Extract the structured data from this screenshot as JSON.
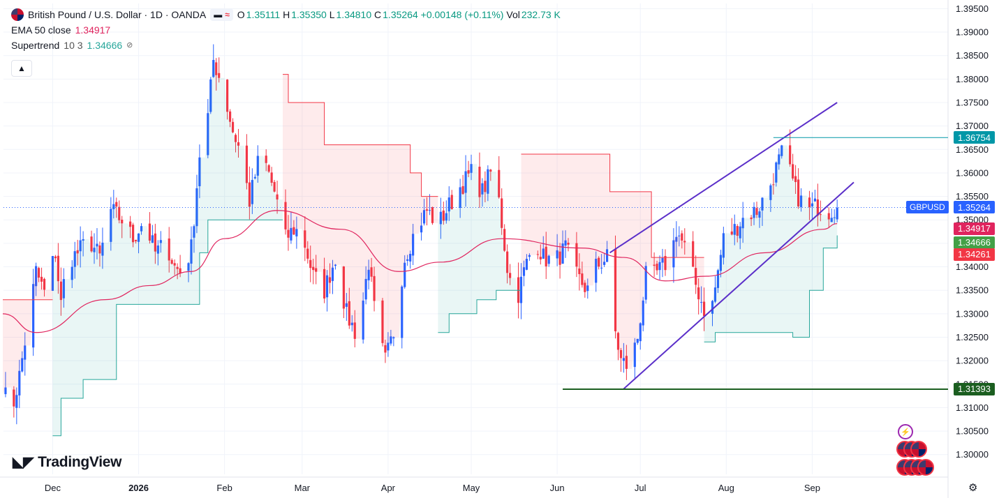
{
  "header": {
    "symbol_title": "British Pound / U.S. Dollar · 1D · OANDA",
    "o_label": "O",
    "o_value": "1.35111",
    "h_label": "H",
    "h_value": "1.35350",
    "l_label": "L",
    "l_value": "1.34810",
    "c_label": "C",
    "c_value": "1.35264",
    "change": "+0.00148 (+0.11%)",
    "vol_label": "Vol",
    "vol_value": "232.73 K"
  },
  "indicators": {
    "ema": {
      "name": "EMA 50 close",
      "value": "1.34917"
    },
    "supertrend": {
      "name": "Supertrend",
      "params": "10 3",
      "value": "1.34666"
    }
  },
  "price_tags": {
    "resistance": "1.36754",
    "symbol": "GBPUSD",
    "last": "1.35264",
    "ema": "1.34917",
    "supertrend": "1.34666",
    "ema_prev": "1.34261",
    "support": "1.31393"
  },
  "logo_text": "TradingView",
  "colors": {
    "up": "#2962ff",
    "down": "#f23645",
    "ema": "#e0245e",
    "supertrend_up": "#26a69a",
    "supertrend_down": "#f23645",
    "channel": "#5b2fc9",
    "support_line": "#1b5e20",
    "resistance_line": "#0097a7"
  },
  "chart_data": {
    "type": "candlestick",
    "y_ticks": [
      "1.39500",
      "1.39000",
      "1.38500",
      "1.38000",
      "1.37500",
      "1.37000",
      "1.36500",
      "1.36000",
      "1.35500",
      "1.35000",
      "1.34500",
      "1.34000",
      "1.33500",
      "1.33000",
      "1.32500",
      "1.32000",
      "1.31500",
      "1.31000",
      "1.30500",
      "1.30000"
    ],
    "ylim": [
      1.2958,
      1.3961
    ],
    "x_ticks": [
      {
        "label": "Dec",
        "date": "2025-12-01"
      },
      {
        "label": "2026",
        "date": "2026-01-01"
      },
      {
        "label": "Feb",
        "date": "2026-02-01"
      },
      {
        "label": "Mar",
        "date": "2026-03-01"
      },
      {
        "label": "Apr",
        "date": "2026-04-01"
      },
      {
        "label": "May",
        "date": "2026-05-01"
      },
      {
        "label": "Jun",
        "date": "2026-06-01"
      },
      {
        "label": "Jul",
        "date": "2026-07-01"
      },
      {
        "label": "Aug",
        "date": "2026-08-01"
      },
      {
        "label": "Sep",
        "date": "2026-09-01"
      }
    ],
    "anchors": [
      [
        "2025-11-13",
        1.315
      ],
      [
        "2025-11-15",
        1.3098
      ],
      [
        "2025-11-17",
        1.3112
      ],
      [
        "2025-11-19",
        1.3168
      ],
      [
        "2025-11-22",
        1.3276
      ],
      [
        "2025-11-25",
        1.339
      ],
      [
        "2025-11-28",
        1.3345
      ],
      [
        "2025-12-02",
        1.343
      ],
      [
        "2025-12-04",
        1.332
      ],
      [
        "2025-12-06",
        1.341
      ],
      [
        "2025-12-10",
        1.343
      ],
      [
        "2025-12-14",
        1.346
      ],
      [
        "2025-12-18",
        1.342
      ],
      [
        "2025-12-22",
        1.352
      ],
      [
        "2025-12-26",
        1.35
      ],
      [
        "2025-12-30",
        1.346
      ],
      [
        "2026-01-03",
        1.35
      ],
      [
        "2026-01-07",
        1.343
      ],
      [
        "2026-01-11",
        1.345
      ],
      [
        "2026-01-14",
        1.34
      ],
      [
        "2026-01-17",
        1.3385
      ],
      [
        "2026-01-20",
        1.344
      ],
      [
        "2026-01-23",
        1.364
      ],
      [
        "2026-01-26",
        1.372
      ],
      [
        "2026-01-28",
        1.384
      ],
      [
        "2026-01-31",
        1.379
      ],
      [
        "2026-02-04",
        1.369
      ],
      [
        "2026-02-07",
        1.364
      ],
      [
        "2026-02-10",
        1.354
      ],
      [
        "2026-02-13",
        1.362
      ],
      [
        "2026-02-16",
        1.3615
      ],
      [
        "2026-02-19",
        1.356
      ],
      [
        "2026-02-23",
        1.346
      ],
      [
        "2026-02-26",
        1.348
      ],
      [
        "2026-03-01",
        1.347
      ],
      [
        "2026-03-05",
        1.338
      ],
      [
        "2026-03-09",
        1.335
      ],
      [
        "2026-03-13",
        1.342
      ],
      [
        "2026-03-17",
        1.33
      ],
      [
        "2026-03-21",
        1.325
      ],
      [
        "2026-03-25",
        1.341
      ],
      [
        "2026-03-28",
        1.326
      ],
      [
        "2026-03-31",
        1.32
      ],
      [
        "2026-04-03",
        1.326
      ],
      [
        "2026-04-07",
        1.342
      ],
      [
        "2026-04-11",
        1.348
      ],
      [
        "2026-04-15",
        1.352
      ],
      [
        "2026-04-19",
        1.349
      ],
      [
        "2026-04-23",
        1.353
      ],
      [
        "2026-04-27",
        1.357
      ],
      [
        "2026-05-01",
        1.36
      ],
      [
        "2026-05-05",
        1.356
      ],
      [
        "2026-05-08",
        1.36
      ],
      [
        "2026-05-11",
        1.354
      ],
      [
        "2026-05-14",
        1.34
      ],
      [
        "2026-05-17",
        1.332
      ],
      [
        "2026-05-20",
        1.339
      ],
      [
        "2026-05-24",
        1.346
      ],
      [
        "2026-05-27",
        1.342
      ],
      [
        "2026-05-31",
        1.341
      ],
      [
        "2026-06-04",
        1.344
      ],
      [
        "2026-06-08",
        1.338
      ],
      [
        "2026-06-12",
        1.335
      ],
      [
        "2026-06-15",
        1.34
      ],
      [
        "2026-06-19",
        1.342
      ],
      [
        "2026-06-21",
        1.329
      ],
      [
        "2026-06-24",
        1.32
      ],
      [
        "2026-06-27",
        1.3185
      ],
      [
        "2026-06-30",
        1.325
      ],
      [
        "2026-07-03",
        1.338
      ],
      [
        "2026-07-06",
        1.338
      ],
      [
        "2026-07-09",
        1.34
      ],
      [
        "2026-07-12",
        1.342
      ],
      [
        "2026-07-14",
        1.348
      ],
      [
        "2026-07-17",
        1.344
      ],
      [
        "2026-07-20",
        1.338
      ],
      [
        "2026-07-24",
        1.331
      ],
      [
        "2026-07-27",
        1.332
      ],
      [
        "2026-07-31",
        1.346
      ],
      [
        "2026-08-04",
        1.348
      ],
      [
        "2026-08-08",
        1.351
      ],
      [
        "2026-08-12",
        1.352
      ],
      [
        "2026-08-16",
        1.356
      ],
      [
        "2026-08-19",
        1.361
      ],
      [
        "2026-08-21",
        1.364
      ],
      [
        "2026-08-23",
        1.362
      ],
      [
        "2026-08-26",
        1.356
      ],
      [
        "2026-08-30",
        1.352
      ],
      [
        "2026-09-03",
        1.353
      ],
      [
        "2026-09-07",
        1.352
      ],
      [
        "2026-09-10",
        1.3526
      ]
    ]
  },
  "lines": {
    "ema_anchors": [
      [
        "2025-11-13",
        1.33
      ],
      [
        "2025-11-25",
        1.326
      ],
      [
        "2025-12-20",
        1.333
      ],
      [
        "2026-01-05",
        1.336
      ],
      [
        "2026-01-20",
        1.339
      ],
      [
        "2026-02-01",
        1.346
      ],
      [
        "2026-02-20",
        1.352
      ],
      [
        "2026-03-15",
        1.348
      ],
      [
        "2026-04-05",
        1.339
      ],
      [
        "2026-04-20",
        1.341
      ],
      [
        "2026-05-12",
        1.346
      ],
      [
        "2026-06-10",
        1.344
      ],
      [
        "2026-06-25",
        1.342
      ],
      [
        "2026-07-10",
        1.337
      ],
      [
        "2026-07-25",
        1.338
      ],
      [
        "2026-08-15",
        1.343
      ],
      [
        "2026-09-05",
        1.348
      ],
      [
        "2026-09-10",
        1.3492
      ]
    ],
    "supertrend_segments": [
      {
        "trend": "down",
        "points": [
          [
            "2025-11-13",
            1.333
          ],
          [
            "2025-11-25",
            1.333
          ],
          [
            "2025-12-01",
            1.333
          ]
        ]
      },
      {
        "trend": "up",
        "points": [
          [
            "2025-12-01",
            1.304
          ],
          [
            "2025-12-04",
            1.312
          ],
          [
            "2025-12-12",
            1.316
          ],
          [
            "2025-12-24",
            1.332
          ],
          [
            "2026-01-16",
            1.332
          ],
          [
            "2026-01-23",
            1.343
          ],
          [
            "2026-01-26",
            1.35
          ],
          [
            "2026-02-22",
            1.35
          ]
        ]
      },
      {
        "trend": "down",
        "points": [
          [
            "2026-02-22",
            1.381
          ],
          [
            "2026-02-24",
            1.375
          ],
          [
            "2026-03-05",
            1.375
          ],
          [
            "2026-03-09",
            1.366
          ],
          [
            "2026-04-05",
            1.366
          ],
          [
            "2026-04-09",
            1.36
          ],
          [
            "2026-04-13",
            1.355
          ],
          [
            "2026-04-19",
            1.355
          ]
        ]
      },
      {
        "trend": "up",
        "points": [
          [
            "2026-04-19",
            1.326
          ],
          [
            "2026-04-23",
            1.33
          ],
          [
            "2026-05-03",
            1.333
          ],
          [
            "2026-05-10",
            1.335
          ],
          [
            "2026-05-19",
            1.335
          ]
        ]
      },
      {
        "trend": "down",
        "points": [
          [
            "2026-05-19",
            1.364
          ],
          [
            "2026-06-14",
            1.364
          ],
          [
            "2026-06-20",
            1.356
          ],
          [
            "2026-07-02",
            1.356
          ],
          [
            "2026-07-05",
            1.342
          ],
          [
            "2026-07-24",
            1.342
          ]
        ]
      },
      {
        "trend": "up",
        "points": [
          [
            "2026-07-24",
            1.324
          ],
          [
            "2026-07-28",
            1.326
          ],
          [
            "2026-08-25",
            1.325
          ],
          [
            "2026-08-31",
            1.335
          ],
          [
            "2026-09-05",
            1.344
          ],
          [
            "2026-09-10",
            1.3467
          ]
        ]
      }
    ],
    "channel": [
      {
        "from": [
          "2026-06-25",
          1.314
        ],
        "to": [
          "2026-09-16",
          1.358
        ]
      },
      {
        "from": [
          "2026-06-20",
          1.343
        ],
        "to": [
          "2026-09-10",
          1.375
        ]
      }
    ],
    "support": {
      "from": "2026-06-03",
      "to": "2026-10-20",
      "value": 1.31393
    },
    "resistance": {
      "from": "2026-08-18",
      "to": "2026-10-20",
      "value": 1.36754
    },
    "last_price": 1.35264
  }
}
